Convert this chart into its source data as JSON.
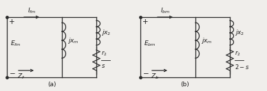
{
  "fig_width": 3.88,
  "fig_height": 1.33,
  "dpi": 100,
  "bg_color": "#f0eeeb",
  "line_color": "#2a2a2a",
  "text_color": "#1a1a1a",
  "font_size": 6.5,
  "circuit_a": {
    "I_label": "$I_{fm}$",
    "E_label": "$E_{fm}$",
    "Z_label": "$Z_f$",
    "jxm_label": "$jx_m$",
    "jx2_label": "$jx_2$",
    "r2s_num": "$r_2$",
    "r2s_den": "$s$",
    "label": "(a)"
  },
  "circuit_b": {
    "I_label": "$I_{bm}$",
    "E_label": "$E_{bm}$",
    "Z_label": "$Z_b$",
    "jxm_label": "$jx_m$",
    "jx2_label": "$jx_2$",
    "r2s_num": "$r_2$",
    "r2s_den": "$2-s$",
    "label": "(b)"
  }
}
